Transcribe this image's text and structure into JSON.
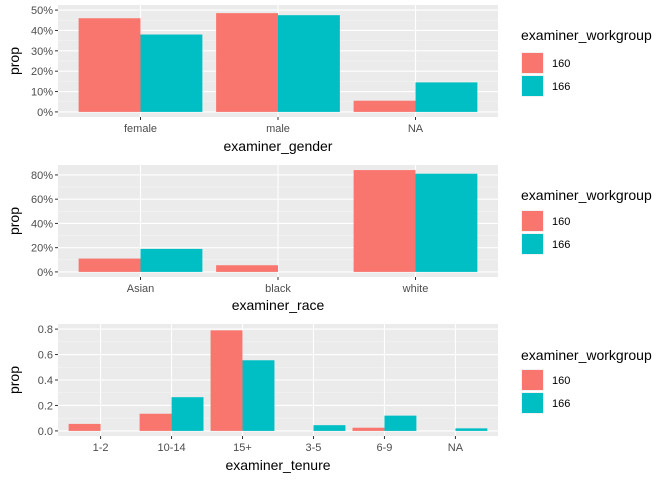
{
  "colors": {
    "panel_background": "#EBEBEB",
    "grid_major": "#FFFFFF",
    "grid_minor": "#F5F5F5",
    "tick_text": "#4D4D4D",
    "series_160": "#F8766D",
    "series_166": "#00BFC4"
  },
  "chart_data": [
    {
      "type": "bar",
      "xlabel": "examiner_gender",
      "ylabel": "prop",
      "categories": [
        "female",
        "male",
        "NA"
      ],
      "y_tick_values": [
        0,
        0.1,
        0.2,
        0.3,
        0.4,
        0.5
      ],
      "y_tick_labels": [
        "0%",
        "10%",
        "20%",
        "30%",
        "40%",
        "50%"
      ],
      "ylim": [
        0,
        0.5
      ],
      "legend": {
        "title": "examiner_workgroup",
        "position": "right"
      },
      "series": [
        {
          "name": "160",
          "color": "#F8766D",
          "values": [
            0.46,
            0.485,
            0.055
          ]
        },
        {
          "name": "166",
          "color": "#00BFC4",
          "values": [
            0.38,
            0.475,
            0.145
          ]
        }
      ],
      "grid": true
    },
    {
      "type": "bar",
      "xlabel": "examiner_race",
      "ylabel": "prop",
      "categories": [
        "Asian",
        "black",
        "white"
      ],
      "y_tick_values": [
        0,
        0.2,
        0.4,
        0.6,
        0.8
      ],
      "y_tick_labels": [
        "0%",
        "20%",
        "40%",
        "60%",
        "80%"
      ],
      "ylim": [
        0,
        0.84
      ],
      "legend": {
        "title": "examiner_workgroup",
        "position": "right"
      },
      "series": [
        {
          "name": "160",
          "color": "#F8766D",
          "values": [
            0.11,
            0.055,
            0.84
          ]
        },
        {
          "name": "166",
          "color": "#00BFC4",
          "values": [
            0.19,
            0.0,
            0.81
          ]
        }
      ],
      "grid": true
    },
    {
      "type": "bar",
      "xlabel": "examiner_tenure",
      "ylabel": "prop",
      "categories": [
        "1-2",
        "10-14",
        "15+",
        "3-5",
        "6-9",
        "NA"
      ],
      "y_tick_values": [
        0,
        0.2,
        0.4,
        0.6,
        0.8
      ],
      "y_tick_labels": [
        "0.0",
        "0.2",
        "0.4",
        "0.6",
        "0.8"
      ],
      "ylim": [
        0,
        0.8
      ],
      "legend": {
        "title": "examiner_workgroup",
        "position": "right"
      },
      "series": [
        {
          "name": "160",
          "color": "#F8766D",
          "values": [
            0.055,
            0.135,
            0.79,
            0.0,
            0.025,
            0.0
          ]
        },
        {
          "name": "166",
          "color": "#00BFC4",
          "values": [
            0.0,
            0.265,
            0.555,
            0.045,
            0.12,
            0.02
          ]
        }
      ],
      "grid": true
    }
  ]
}
